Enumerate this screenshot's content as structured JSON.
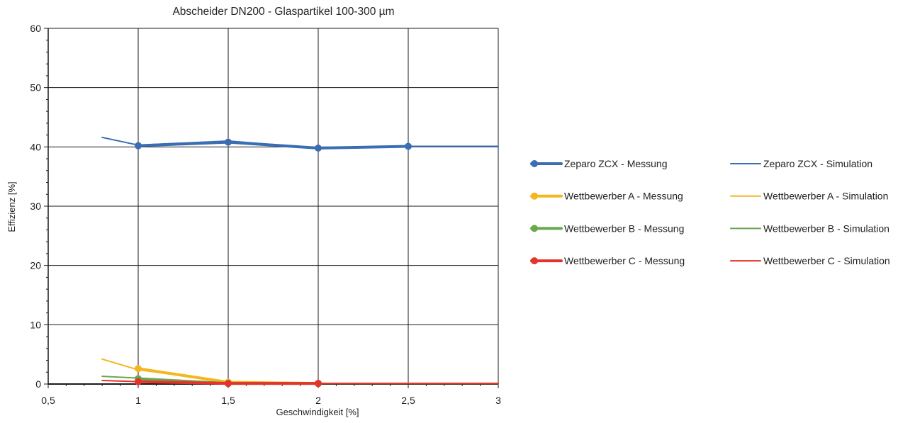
{
  "chart_data": {
    "type": "line",
    "title": "Abscheider DN200 - Glaspartikel  100-300 µm",
    "xlabel": "Geschwindigkeit [%]",
    "ylabel": "Effizienz [%]",
    "xlim": [
      0.5,
      3
    ],
    "ylim": [
      0,
      60
    ],
    "x_ticks": [
      0.5,
      1,
      1.5,
      2,
      2.5,
      3
    ],
    "x_tick_labels": [
      "0,5",
      "1",
      "1,5",
      "2",
      "2,5",
      "3"
    ],
    "y_ticks": [
      0,
      10,
      20,
      30,
      40,
      50,
      60
    ],
    "y_tick_labels": [
      "0",
      "10",
      "20",
      "30",
      "40",
      "50",
      "60"
    ],
    "grid": true,
    "legend_position": "right",
    "series": [
      {
        "name": "Zeparo ZCX - Messung",
        "kind": "measurement",
        "color": "#3a6db3",
        "x": [
          1,
          1.5,
          2,
          2.5
        ],
        "y": [
          40.2,
          40.8,
          39.8,
          40.1
        ]
      },
      {
        "name": "Zeparo ZCX - Simulation",
        "kind": "simulation",
        "color": "#3a6db3",
        "x": [
          0.8,
          1,
          1.5,
          2,
          2.5,
          3
        ],
        "y": [
          41.6,
          40.3,
          41.0,
          39.8,
          40.1,
          40.1
        ]
      },
      {
        "name": "Wettbewerber A - Messung",
        "kind": "measurement",
        "color": "#f5b61e",
        "x": [
          1,
          1.5,
          2
        ],
        "y": [
          2.6,
          0.3,
          0.1
        ]
      },
      {
        "name": "Wettbewerber A - Simulation",
        "kind": "simulation",
        "color": "#f5b61e",
        "x": [
          0.8,
          1,
          1.5,
          2,
          2.5,
          3
        ],
        "y": [
          4.2,
          2.4,
          0.4,
          0.1,
          0.1,
          0.1
        ]
      },
      {
        "name": "Wettbewerber B - Messung",
        "kind": "measurement",
        "color": "#6aa84f",
        "x": [
          1,
          1.5,
          2
        ],
        "y": [
          0.9,
          0.1,
          0.1
        ]
      },
      {
        "name": "Wettbewerber B - Simulation",
        "kind": "simulation",
        "color": "#6aa84f",
        "x": [
          0.8,
          1,
          1.5,
          2,
          2.5,
          3
        ],
        "y": [
          1.3,
          1.0,
          0.1,
          0.1,
          0.1,
          0.1
        ]
      },
      {
        "name": "Wettbewerber C - Messung",
        "kind": "measurement",
        "color": "#e3332a",
        "x": [
          1,
          1.5,
          2
        ],
        "y": [
          0.4,
          0.1,
          0.1
        ]
      },
      {
        "name": "Wettbewerber C - Simulation",
        "kind": "simulation",
        "color": "#e3332a",
        "x": [
          0.8,
          1,
          1.5,
          2,
          2.5,
          3
        ],
        "y": [
          0.6,
          0.4,
          0.1,
          0.1,
          0.1,
          0.1
        ]
      }
    ]
  }
}
